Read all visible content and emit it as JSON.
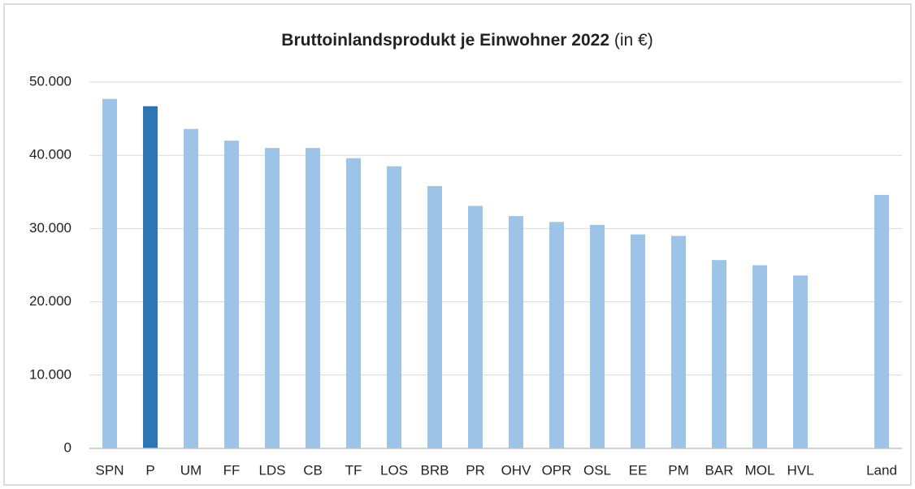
{
  "chart_data": {
    "type": "bar",
    "title": "Bruttoinlandsprodukt je Einwohner 2022",
    "unit": "(in €)",
    "categories": [
      "SPN",
      "P",
      "UM",
      "FF",
      "LDS",
      "CB",
      "TF",
      "LOS",
      "BRB",
      "PR",
      "OHV",
      "OPR",
      "OSL",
      "EE",
      "PM",
      "BAR",
      "MOL",
      "HVL",
      null,
      "Land"
    ],
    "values": [
      47700,
      46700,
      43600,
      42000,
      41000,
      41000,
      39600,
      38500,
      35800,
      33100,
      31700,
      30900,
      30500,
      29200,
      29000,
      25700,
      25000,
      23600,
      null,
      34600
    ],
    "colors": [
      "#9dc3e6",
      "#2e75b6",
      "#9dc3e6",
      "#9dc3e6",
      "#9dc3e6",
      "#9dc3e6",
      "#9dc3e6",
      "#9dc3e6",
      "#9dc3e6",
      "#9dc3e6",
      "#9dc3e6",
      "#9dc3e6",
      "#9dc3e6",
      "#9dc3e6",
      "#9dc3e6",
      "#9dc3e6",
      "#9dc3e6",
      "#9dc3e6",
      "#9dc3e6",
      "#9dc3e6"
    ],
    "ylim": [
      0,
      50000
    ],
    "yticks": [
      0,
      {
        "value": 10000,
        "label": "10.000"
      },
      {
        "value": 20000,
        "label": "20.000"
      },
      {
        "value": 30000,
        "label": "30.000"
      },
      {
        "value": 40000,
        "label": "40.000"
      },
      {
        "value": 50000,
        "label": "50.000"
      }
    ],
    "grid": true
  }
}
